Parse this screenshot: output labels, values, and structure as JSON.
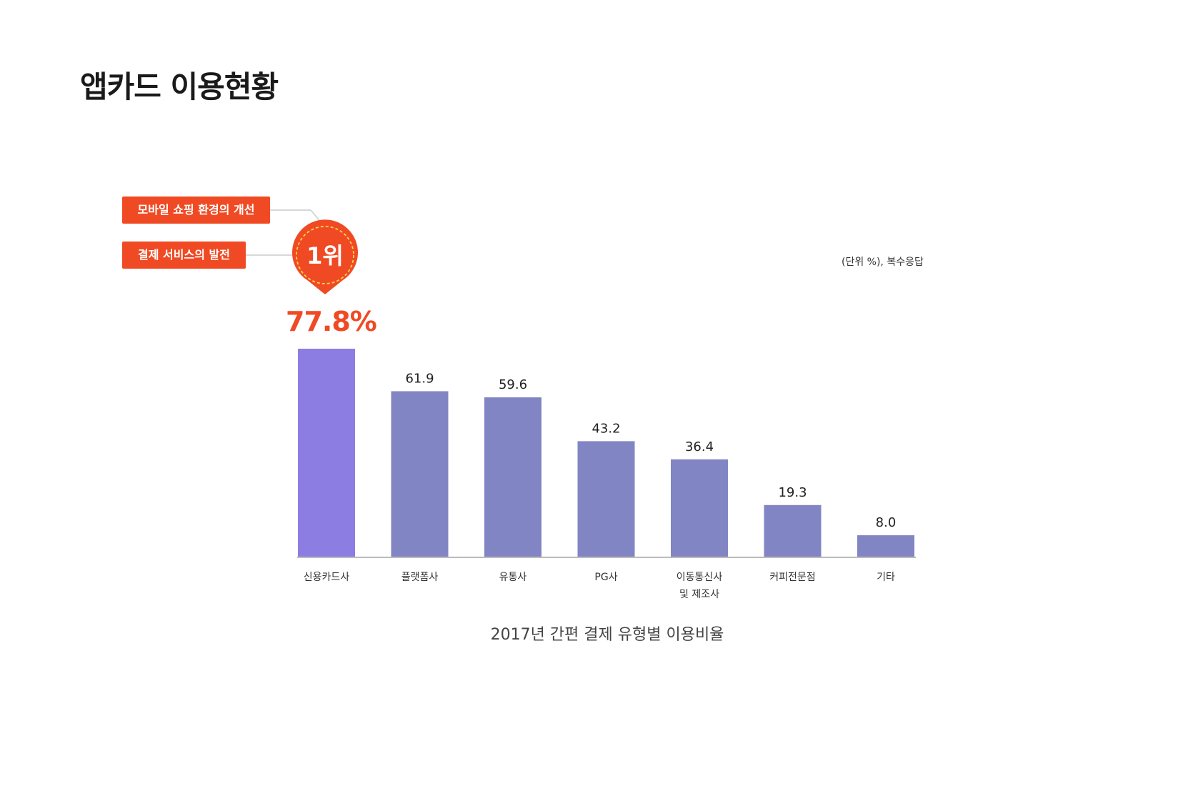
{
  "page_title": "앱카드 이용현황",
  "callouts": [
    "모바일 쇼핑 환경의 개선",
    "결제 서비스의 발전"
  ],
  "rank_badge": "1위",
  "highlight_value": "77.8%",
  "unit_note": "(단위 %), 복수응답",
  "colors": {
    "accent": "#f04a24",
    "highlight_bar": "#8c7de3",
    "bar": "#8285c3",
    "axis": "#bbbbbb"
  },
  "chart_data": {
    "type": "bar",
    "title": "2017년 간편 결제 유형별 이용비율",
    "categories": [
      "신용카드사",
      "플랫폼사",
      "유통사",
      "PG사",
      "이동통신사\n및 제조사",
      "커피전문점",
      "기타"
    ],
    "values": [
      77.8,
      61.9,
      59.6,
      43.2,
      36.4,
      19.3,
      8.0
    ],
    "value_labels": [
      "77.8%",
      "61.9",
      "59.6",
      "43.2",
      "36.4",
      "19.3",
      "8.0"
    ],
    "ylim": [
      0,
      80
    ],
    "grid": false,
    "unit": "%"
  }
}
